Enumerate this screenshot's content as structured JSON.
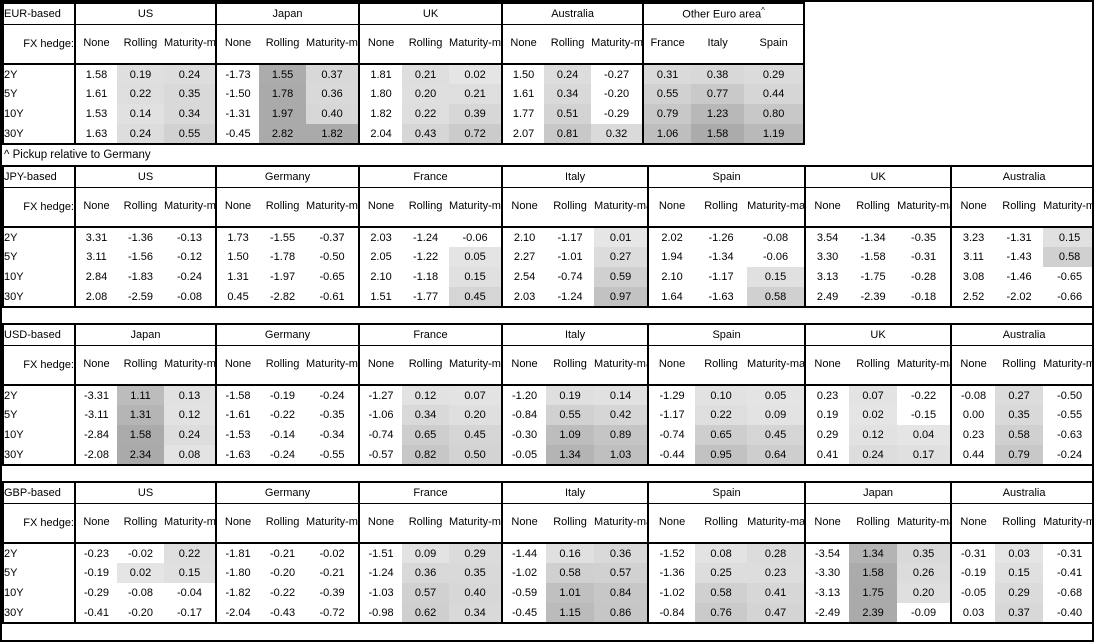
{
  "fx_hedge_label": "FX hedge:",
  "tenors": [
    "2Y",
    "5Y",
    "10Y",
    "30Y"
  ],
  "hedge_labels": [
    "None",
    "Rolling",
    "Maturity-matched"
  ],
  "heatmap": {
    "shaded_hedge_columns": [
      "Rolling",
      "Maturity-matched"
    ],
    "white_below_or_equal": 0,
    "light_hex": "#e6e6e6",
    "dark_hex": "#aaaaaa",
    "saturate_value": 1.6
  },
  "sections": [
    {
      "label": "EUR-based",
      "footnote": "^ Pickup relative to Germany",
      "blocks": [
        {
          "country": "US",
          "cols": [
            "None",
            "Rolling",
            "Maturity-matched"
          ],
          "heat": [
            false,
            true,
            true
          ],
          "values": [
            [
              "1.58",
              "0.19",
              "0.24"
            ],
            [
              "1.61",
              "0.22",
              "0.35"
            ],
            [
              "1.53",
              "0.14",
              "0.34"
            ],
            [
              "1.63",
              "0.24",
              "0.55"
            ]
          ]
        },
        {
          "country": "Japan",
          "cols": [
            "None",
            "Rolling",
            "Maturity-matched"
          ],
          "heat": [
            false,
            true,
            true
          ],
          "values": [
            [
              "-1.73",
              "1.55",
              "0.37"
            ],
            [
              "-1.50",
              "1.78",
              "0.36"
            ],
            [
              "-1.31",
              "1.97",
              "0.40"
            ],
            [
              "-0.45",
              "2.82",
              "1.82"
            ]
          ]
        },
        {
          "country": "UK",
          "cols": [
            "None",
            "Rolling",
            "Maturity-matched"
          ],
          "heat": [
            false,
            true,
            true
          ],
          "values": [
            [
              "1.81",
              "0.21",
              "0.02"
            ],
            [
              "1.80",
              "0.20",
              "0.21"
            ],
            [
              "1.82",
              "0.22",
              "0.39"
            ],
            [
              "2.04",
              "0.43",
              "0.72"
            ]
          ]
        },
        {
          "country": "Australia",
          "cols": [
            "None",
            "Rolling",
            "Maturity-matched"
          ],
          "heat": [
            false,
            true,
            true
          ],
          "values": [
            [
              "1.50",
              "0.24",
              "-0.27"
            ],
            [
              "1.61",
              "0.34",
              "-0.20"
            ],
            [
              "1.77",
              "0.51",
              "-0.29"
            ],
            [
              "2.07",
              "0.81",
              "0.32"
            ]
          ]
        },
        {
          "country": "Other Euro area",
          "sup_marker": "^",
          "cols": [
            "France",
            "Italy",
            "Spain"
          ],
          "heat": [
            true,
            true,
            true
          ],
          "values": [
            [
              "0.31",
              "0.38",
              "0.29"
            ],
            [
              "0.55",
              "0.77",
              "0.44"
            ],
            [
              "0.79",
              "1.23",
              "0.80"
            ],
            [
              "1.06",
              "1.58",
              "1.19"
            ]
          ]
        }
      ]
    },
    {
      "label": "JPY-based",
      "blocks": [
        {
          "country": "US",
          "cols": [
            "None",
            "Rolling",
            "Maturity-matched"
          ],
          "heat": [
            false,
            true,
            true
          ],
          "values": [
            [
              "3.31",
              "-1.36",
              "-0.13"
            ],
            [
              "3.11",
              "-1.56",
              "-0.12"
            ],
            [
              "2.84",
              "-1.83",
              "-0.24"
            ],
            [
              "2.08",
              "-2.59",
              "-0.08"
            ]
          ]
        },
        {
          "country": "Germany",
          "cols": [
            "None",
            "Rolling",
            "Maturity-matched"
          ],
          "heat": [
            false,
            true,
            true
          ],
          "values": [
            [
              "1.73",
              "-1.55",
              "-0.37"
            ],
            [
              "1.50",
              "-1.78",
              "-0.50"
            ],
            [
              "1.31",
              "-1.97",
              "-0.65"
            ],
            [
              "0.45",
              "-2.82",
              "-0.61"
            ]
          ]
        },
        {
          "country": "France",
          "cols": [
            "None",
            "Rolling",
            "Maturity-matched"
          ],
          "heat": [
            false,
            true,
            true
          ],
          "values": [
            [
              "2.03",
              "-1.24",
              "-0.06"
            ],
            [
              "2.05",
              "-1.22",
              "0.05"
            ],
            [
              "2.10",
              "-1.18",
              "0.15"
            ],
            [
              "1.51",
              "-1.77",
              "0.45"
            ]
          ]
        },
        {
          "country": "Italy",
          "cols": [
            "None",
            "Rolling",
            "Maturity-matched"
          ],
          "heat": [
            false,
            true,
            true
          ],
          "values": [
            [
              "2.10",
              "-1.17",
              "0.01"
            ],
            [
              "2.27",
              "-1.01",
              "0.27"
            ],
            [
              "2.54",
              "-0.74",
              "0.59"
            ],
            [
              "2.03",
              "-1.24",
              "0.97"
            ]
          ]
        },
        {
          "country": "Spain",
          "cols": [
            "None",
            "Rolling",
            "Maturity-matched"
          ],
          "heat": [
            false,
            true,
            true
          ],
          "values": [
            [
              "2.02",
              "-1.26",
              "-0.08"
            ],
            [
              "1.94",
              "-1.34",
              "-0.06"
            ],
            [
              "2.10",
              "-1.17",
              "0.15"
            ],
            [
              "1.64",
              "-1.63",
              "0.58"
            ]
          ]
        },
        {
          "country": "UK",
          "cols": [
            "None",
            "Rolling",
            "Maturity-matched"
          ],
          "heat": [
            false,
            true,
            true
          ],
          "values": [
            [
              "3.54",
              "-1.34",
              "-0.35"
            ],
            [
              "3.30",
              "-1.58",
              "-0.31"
            ],
            [
              "3.13",
              "-1.75",
              "-0.28"
            ],
            [
              "2.49",
              "-2.39",
              "-0.18"
            ]
          ]
        },
        {
          "country": "Australia",
          "cols": [
            "None",
            "Rolling",
            "Maturity-matched"
          ],
          "heat": [
            false,
            true,
            true
          ],
          "values": [
            [
              "3.23",
              "-1.31",
              "0.15"
            ],
            [
              "3.11",
              "-1.43",
              "0.58"
            ],
            [
              "3.08",
              "-1.46",
              "-0.65"
            ],
            [
              "2.52",
              "-2.02",
              "-0.66"
            ]
          ]
        }
      ]
    },
    {
      "label": "USD-based",
      "blocks": [
        {
          "country": "Japan",
          "cols": [
            "None",
            "Rolling",
            "Maturity-matched"
          ],
          "heat": [
            false,
            true,
            true
          ],
          "values": [
            [
              "-3.31",
              "1.11",
              "0.13"
            ],
            [
              "-3.11",
              "1.31",
              "0.12"
            ],
            [
              "-2.84",
              "1.58",
              "0.24"
            ],
            [
              "-2.08",
              "2.34",
              "0.08"
            ]
          ]
        },
        {
          "country": "Germany",
          "cols": [
            "None",
            "Rolling",
            "Maturity-matched"
          ],
          "heat": [
            false,
            true,
            true
          ],
          "values": [
            [
              "-1.58",
              "-0.19",
              "-0.24"
            ],
            [
              "-1.61",
              "-0.22",
              "-0.35"
            ],
            [
              "-1.53",
              "-0.14",
              "-0.34"
            ],
            [
              "-1.63",
              "-0.24",
              "-0.55"
            ]
          ]
        },
        {
          "country": "France",
          "cols": [
            "None",
            "Rolling",
            "Maturity-matched"
          ],
          "heat": [
            false,
            true,
            true
          ],
          "values": [
            [
              "-1.27",
              "0.12",
              "0.07"
            ],
            [
              "-1.06",
              "0.34",
              "0.20"
            ],
            [
              "-0.74",
              "0.65",
              "0.45"
            ],
            [
              "-0.57",
              "0.82",
              "0.50"
            ]
          ]
        },
        {
          "country": "Italy",
          "cols": [
            "None",
            "Rolling",
            "Maturity-matched"
          ],
          "heat": [
            false,
            true,
            true
          ],
          "values": [
            [
              "-1.20",
              "0.19",
              "0.14"
            ],
            [
              "-0.84",
              "0.55",
              "0.42"
            ],
            [
              "-0.30",
              "1.09",
              "0.89"
            ],
            [
              "-0.05",
              "1.34",
              "1.03"
            ]
          ]
        },
        {
          "country": "Spain",
          "cols": [
            "None",
            "Rolling",
            "Maturity-matched"
          ],
          "heat": [
            false,
            true,
            true
          ],
          "values": [
            [
              "-1.29",
              "0.10",
              "0.05"
            ],
            [
              "-1.17",
              "0.22",
              "0.09"
            ],
            [
              "-0.74",
              "0.65",
              "0.45"
            ],
            [
              "-0.44",
              "0.95",
              "0.64"
            ]
          ]
        },
        {
          "country": "UK",
          "cols": [
            "None",
            "Rolling",
            "Maturity-matched"
          ],
          "heat": [
            false,
            true,
            true
          ],
          "values": [
            [
              "0.23",
              "0.07",
              "-0.22"
            ],
            [
              "0.19",
              "0.02",
              "-0.15"
            ],
            [
              "0.29",
              "0.12",
              "0.04"
            ],
            [
              "0.41",
              "0.24",
              "0.17"
            ]
          ]
        },
        {
          "country": "Australia",
          "cols": [
            "None",
            "Rolling",
            "Maturity-matched"
          ],
          "heat": [
            false,
            true,
            true
          ],
          "values": [
            [
              "-0.08",
              "0.27",
              "-0.50"
            ],
            [
              "0.00",
              "0.35",
              "-0.55"
            ],
            [
              "0.23",
              "0.58",
              "-0.63"
            ],
            [
              "0.44",
              "0.79",
              "-0.24"
            ]
          ]
        }
      ]
    },
    {
      "label": "GBP-based",
      "blocks": [
        {
          "country": "US",
          "cols": [
            "None",
            "Rolling",
            "Maturity-matched"
          ],
          "heat": [
            false,
            true,
            true
          ],
          "values": [
            [
              "-0.23",
              "-0.02",
              "0.22"
            ],
            [
              "-0.19",
              "0.02",
              "0.15"
            ],
            [
              "-0.29",
              "-0.08",
              "-0.04"
            ],
            [
              "-0.41",
              "-0.20",
              "-0.17"
            ]
          ]
        },
        {
          "country": "Germany",
          "cols": [
            "None",
            "Rolling",
            "Maturity-matched"
          ],
          "heat": [
            false,
            true,
            true
          ],
          "values": [
            [
              "-1.81",
              "-0.21",
              "-0.02"
            ],
            [
              "-1.80",
              "-0.20",
              "-0.21"
            ],
            [
              "-1.82",
              "-0.22",
              "-0.39"
            ],
            [
              "-2.04",
              "-0.43",
              "-0.72"
            ]
          ]
        },
        {
          "country": "France",
          "cols": [
            "None",
            "Rolling",
            "Maturity-matched"
          ],
          "heat": [
            false,
            true,
            true
          ],
          "values": [
            [
              "-1.51",
              "0.09",
              "0.29"
            ],
            [
              "-1.24",
              "0.36",
              "0.35"
            ],
            [
              "-1.03",
              "0.57",
              "0.40"
            ],
            [
              "-0.98",
              "0.62",
              "0.34"
            ]
          ]
        },
        {
          "country": "Italy",
          "cols": [
            "None",
            "Rolling",
            "Maturity-matched"
          ],
          "heat": [
            false,
            true,
            true
          ],
          "values": [
            [
              "-1.44",
              "0.16",
              "0.36"
            ],
            [
              "-1.02",
              "0.58",
              "0.57"
            ],
            [
              "-0.59",
              "1.01",
              "0.84"
            ],
            [
              "-0.45",
              "1.15",
              "0.86"
            ]
          ]
        },
        {
          "country": "Spain",
          "cols": [
            "None",
            "Rolling",
            "Maturity-matched"
          ],
          "heat": [
            false,
            true,
            true
          ],
          "values": [
            [
              "-1.52",
              "0.08",
              "0.28"
            ],
            [
              "-1.36",
              "0.25",
              "0.23"
            ],
            [
              "-1.02",
              "0.58",
              "0.41"
            ],
            [
              "-0.84",
              "0.76",
              "0.47"
            ]
          ]
        },
        {
          "country": "Japan",
          "cols": [
            "None",
            "Rolling",
            "Maturity-matched"
          ],
          "heat": [
            false,
            true,
            true
          ],
          "values": [
            [
              "-3.54",
              "1.34",
              "0.35"
            ],
            [
              "-3.30",
              "1.58",
              "0.26"
            ],
            [
              "-3.13",
              "1.75",
              "0.20"
            ],
            [
              "-2.49",
              "2.39",
              "-0.09"
            ]
          ]
        },
        {
          "country": "Australia",
          "cols": [
            "None",
            "Rolling",
            "Maturity-matched"
          ],
          "heat": [
            false,
            true,
            true
          ],
          "values": [
            [
              "-0.31",
              "0.03",
              "-0.31"
            ],
            [
              "-0.19",
              "0.15",
              "-0.41"
            ],
            [
              "-0.05",
              "0.29",
              "-0.68"
            ],
            [
              "0.03",
              "0.37",
              "-0.40"
            ]
          ]
        }
      ]
    }
  ]
}
